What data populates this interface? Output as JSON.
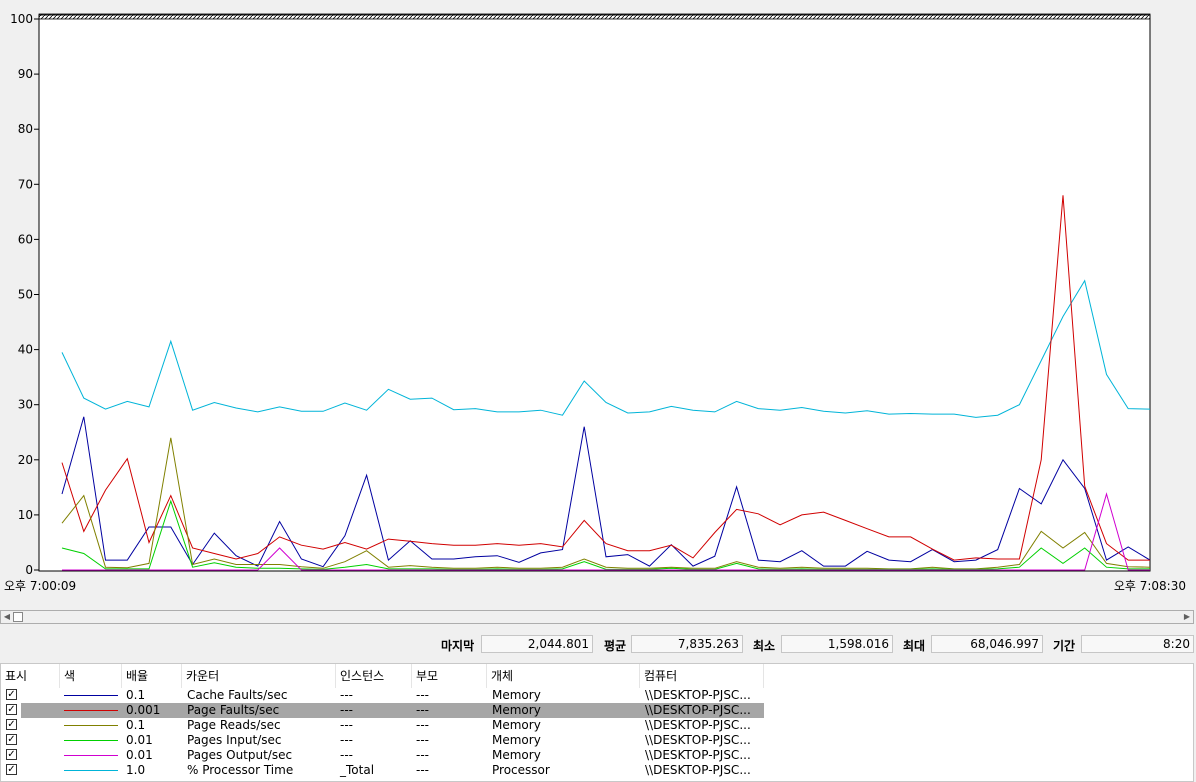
{
  "chart_data": {
    "type": "line",
    "ylim": [
      0,
      100
    ],
    "yticks": [
      0,
      10,
      20,
      30,
      40,
      50,
      60,
      70,
      80,
      90,
      100
    ],
    "series": [
      {
        "name": "% Processor Time",
        "color": "#00b4d8",
        "values": [
          39.5,
          31.2,
          29.2,
          30.6,
          29.6,
          41.5,
          29.0,
          30.4,
          29.4,
          28.7,
          29.6,
          28.8,
          28.8,
          30.3,
          29.0,
          32.8,
          31.0,
          31.2,
          29.1,
          29.3,
          28.7,
          28.7,
          29.0,
          28.1,
          34.3,
          30.4,
          28.5,
          28.7,
          29.7,
          29.0,
          28.7,
          30.6,
          29.3,
          29.0,
          29.5,
          28.8,
          28.5,
          28.9,
          28.3,
          28.4,
          28.3,
          28.3,
          27.7,
          28.1,
          30.0,
          38.0,
          46.0,
          52.5,
          35.5,
          29.3,
          29.2
        ]
      },
      {
        "name": "Cache Faults/sec",
        "color": "#0000a0",
        "values": [
          13.8,
          27.8,
          1.8,
          1.8,
          7.8,
          7.8,
          1.0,
          6.7,
          2.6,
          0.7,
          8.8,
          2.0,
          0.6,
          6.2,
          17.2,
          1.8,
          5.3,
          2.0,
          2.0,
          2.4,
          2.6,
          1.4,
          3.1,
          3.7,
          26.0,
          2.4,
          2.8,
          0.7,
          4.6,
          0.7,
          2.5,
          15.1,
          1.8,
          1.5,
          3.5,
          0.7,
          0.7,
          3.4,
          1.8,
          1.5,
          3.7,
          1.5,
          1.8,
          3.7,
          14.8,
          12.0,
          20.0,
          14.8,
          1.8,
          4.2,
          1.8
        ]
      },
      {
        "name": "Page Faults/sec",
        "color": "#d00000",
        "values": [
          19.5,
          7.0,
          14.5,
          20.2,
          5.0,
          13.5,
          4.0,
          3.0,
          2.0,
          3.0,
          6.0,
          4.5,
          3.8,
          5.0,
          3.8,
          5.6,
          5.2,
          4.8,
          4.5,
          4.5,
          4.8,
          4.5,
          4.8,
          4.2,
          9.0,
          4.8,
          3.5,
          3.5,
          4.5,
          2.2,
          6.8,
          11.0,
          10.2,
          8.2,
          10.0,
          10.5,
          9.0,
          7.5,
          6.0,
          6.0,
          3.8,
          1.8,
          2.2,
          2.0,
          2.0,
          20.0,
          68.0,
          15.2,
          4.8,
          1.8,
          1.8
        ]
      },
      {
        "name": "Page Reads/sec",
        "color": "#808000",
        "values": [
          8.5,
          13.5,
          0.5,
          0.4,
          1.2,
          24.0,
          1.0,
          2.0,
          1.0,
          1.0,
          1.0,
          0.6,
          0.3,
          1.5,
          3.5,
          0.5,
          0.8,
          0.5,
          0.3,
          0.3,
          0.5,
          0.3,
          0.3,
          0.5,
          2.0,
          0.5,
          0.3,
          0.3,
          0.5,
          0.3,
          0.3,
          1.5,
          0.5,
          0.3,
          0.5,
          0.3,
          0.3,
          0.3,
          0.2,
          0.2,
          0.5,
          0.2,
          0.2,
          0.5,
          1.0,
          7.0,
          4.0,
          6.8,
          1.2,
          0.6,
          0.5
        ]
      },
      {
        "name": "Pages Input/sec",
        "color": "#00d000",
        "values": [
          4.0,
          3.0,
          0.2,
          0.2,
          0.2,
          12.5,
          0.5,
          1.3,
          0.5,
          0.3,
          0.3,
          0.2,
          0.1,
          0.5,
          1.0,
          0.2,
          0.2,
          0.2,
          0.1,
          0.1,
          0.2,
          0.1,
          0.1,
          0.2,
          1.5,
          0.1,
          0.1,
          0.1,
          0.3,
          0.1,
          0.1,
          1.2,
          0.2,
          0.1,
          0.2,
          0.1,
          0.1,
          0.1,
          0.1,
          0.1,
          0.2,
          0.1,
          0.1,
          0.2,
          0.5,
          4.0,
          1.2,
          4.0,
          0.5,
          0.2,
          0.2
        ]
      },
      {
        "name": "Pages Output/sec",
        "color": "#d000d0",
        "values": [
          0,
          0,
          0,
          0,
          0,
          0,
          0,
          0,
          0,
          0,
          4.0,
          0,
          0,
          0,
          0,
          0,
          0,
          0,
          0,
          0,
          0,
          0,
          0,
          0,
          0,
          0,
          0,
          0,
          0,
          0,
          0,
          0,
          0,
          0,
          0,
          0,
          0,
          0,
          0,
          0,
          0,
          0,
          0,
          0,
          0,
          0,
          0,
          0,
          13.8,
          0,
          0
        ]
      }
    ]
  },
  "time_axis": {
    "start": "오후 7:00:09",
    "end": "오후 7:08:30"
  },
  "stats": {
    "last_label": "마지막",
    "last_value": "2,044.801",
    "avg_label": "평균",
    "avg_value": "7,835.263",
    "min_label": "최소",
    "min_value": "1,598.016",
    "max_label": "최대",
    "max_value": "68,046.997",
    "duration_label": "기간",
    "duration_value": "8:20"
  },
  "table": {
    "headers": {
      "show": "표시",
      "color": "색",
      "scale": "배율",
      "counter": "카운터",
      "instance": "인스턴스",
      "parent": "부모",
      "object": "개체",
      "computer": "컴퓨터"
    },
    "rows": [
      {
        "checked": true,
        "color": "#0000a0",
        "scale": "0.1",
        "counter": "Cache Faults/sec",
        "instance": "---",
        "parent": "---",
        "object": "Memory",
        "computer": "\\\\DESKTOP-PJSC...",
        "selected": false
      },
      {
        "checked": true,
        "color": "#d00000",
        "scale": "0.001",
        "counter": "Page Faults/sec",
        "instance": "---",
        "parent": "---",
        "object": "Memory",
        "computer": "\\\\DESKTOP-PJSC...",
        "selected": true
      },
      {
        "checked": true,
        "color": "#808000",
        "scale": "0.1",
        "counter": "Page Reads/sec",
        "instance": "---",
        "parent": "---",
        "object": "Memory",
        "computer": "\\\\DESKTOP-PJSC...",
        "selected": false
      },
      {
        "checked": true,
        "color": "#00d000",
        "scale": "0.01",
        "counter": "Pages Input/sec",
        "instance": "---",
        "parent": "---",
        "object": "Memory",
        "computer": "\\\\DESKTOP-PJSC...",
        "selected": false
      },
      {
        "checked": true,
        "color": "#d000d0",
        "scale": "0.01",
        "counter": "Pages Output/sec",
        "instance": "---",
        "parent": "---",
        "object": "Memory",
        "computer": "\\\\DESKTOP-PJSC...",
        "selected": false
      },
      {
        "checked": true,
        "color": "#00b4d8",
        "scale": "1.0",
        "counter": "% Processor Time",
        "instance": "_Total",
        "parent": "---",
        "object": "Processor",
        "computer": "\\\\DESKTOP-PJSC...",
        "selected": false
      }
    ]
  }
}
